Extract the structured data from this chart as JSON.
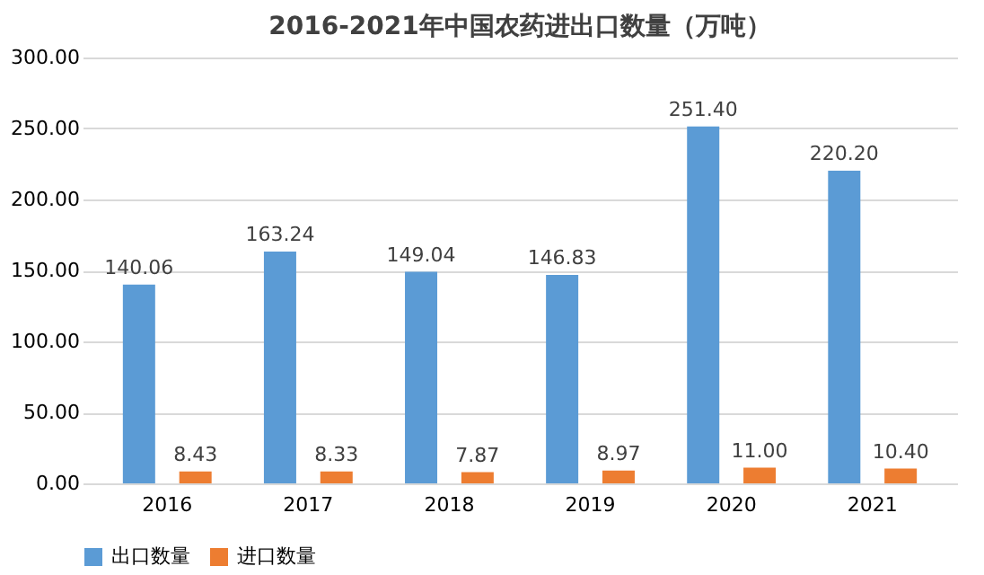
{
  "chart_data": {
    "type": "bar",
    "title": "2016-2021年中国农药进出口数量（万吨）",
    "categories": [
      "2016",
      "2017",
      "2018",
      "2019",
      "2020",
      "2021"
    ],
    "series": [
      {
        "name": "出口数量",
        "color": "#5b9bd5",
        "values": [
          140.06,
          163.24,
          149.04,
          146.83,
          251.4,
          220.2
        ],
        "value_labels": [
          "140.06",
          "163.24",
          "149.04",
          "146.83",
          "251.40",
          "220.20"
        ]
      },
      {
        "name": "进口数量",
        "color": "#ed7d31",
        "values": [
          8.43,
          8.33,
          7.87,
          8.97,
          11.0,
          10.4
        ],
        "value_labels": [
          "8.43",
          "8.33",
          "7.87",
          "8.97",
          "11.00",
          "10.40"
        ]
      }
    ],
    "ylim": [
      0,
      300
    ],
    "yticks": [
      {
        "value": 0,
        "label": "0.00"
      },
      {
        "value": 50,
        "label": "50.00"
      },
      {
        "value": 100,
        "label": "100.00"
      },
      {
        "value": 150,
        "label": "150.00"
      },
      {
        "value": 200,
        "label": "200.00"
      },
      {
        "value": 250,
        "label": "250.00"
      },
      {
        "value": 300,
        "label": "300.00"
      }
    ],
    "grid": "y",
    "legend": "bottom"
  }
}
